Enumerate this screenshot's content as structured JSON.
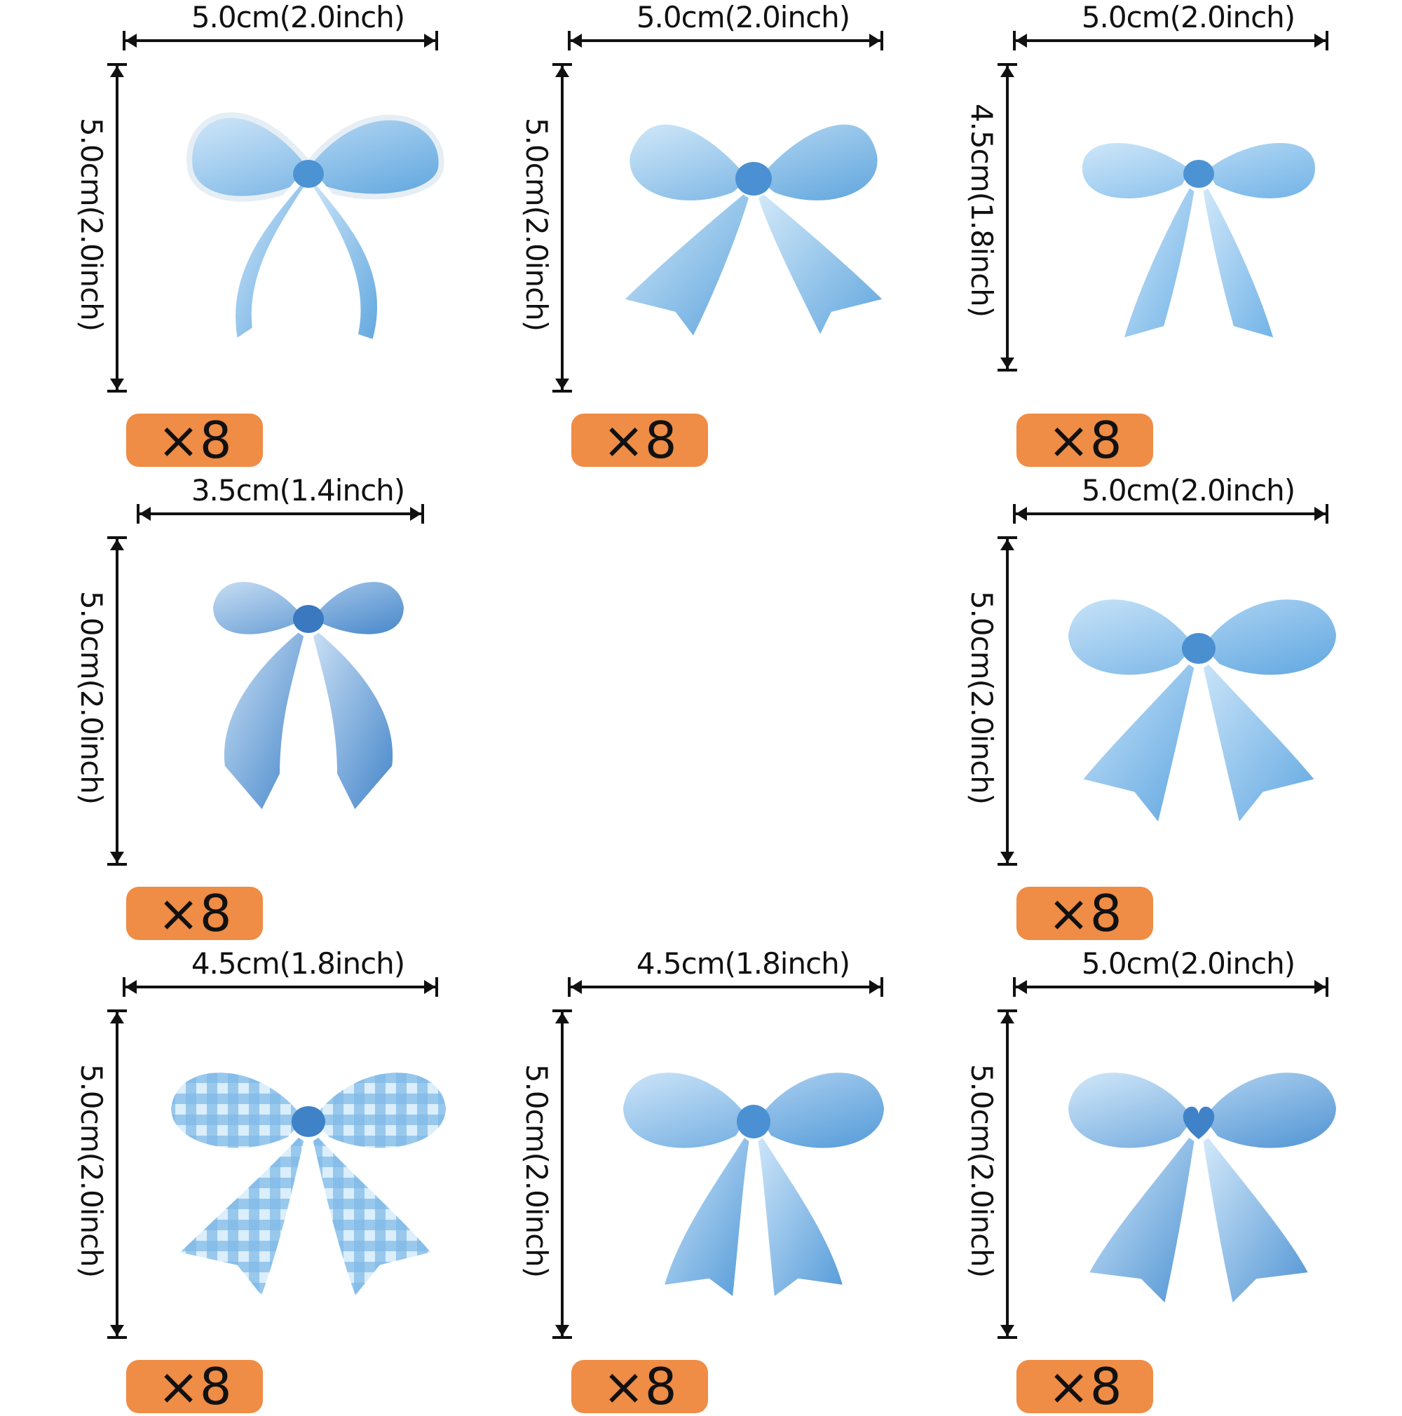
{
  "colors": {
    "badge": "#ef8c45",
    "bow_light": "#a9d4f2",
    "bow_mid": "#6fb0e4",
    "bow_dark": "#3d7fc6",
    "sticker_border": "#ffffff"
  },
  "stickers": [
    {
      "width_label": "5.0cm(2.0inch)",
      "height_label": "5.0cm(2.0inch)",
      "count": "×8",
      "style": "ribbon-loop-bow"
    },
    {
      "width_label": "5.0cm(2.0inch)",
      "height_label": "5.0cm(2.0inch)",
      "count": "×8",
      "style": "watercolor-bow"
    },
    {
      "width_label": "5.0cm(2.0inch)",
      "height_label": "4.5cm(1.8inch)",
      "count": "×8",
      "style": "simple-bow"
    },
    {
      "width_label": "3.5cm(1.4inch)",
      "height_label": "5.0cm(2.0inch)",
      "count": "×8",
      "style": "ruffled-bow"
    },
    {
      "width_label": "5.0cm(2.0inch)",
      "height_label": "5.0cm(2.0inch)",
      "count": "×8",
      "style": "striped-bow"
    },
    {
      "width_label": "4.5cm(1.8inch)",
      "height_label": "5.0cm(2.0inch)",
      "count": "×8",
      "style": "gingham-bow"
    },
    {
      "width_label": "4.5cm(1.8inch)",
      "height_label": "5.0cm(2.0inch)",
      "count": "×8",
      "style": "stitched-bow"
    },
    {
      "width_label": "5.0cm(2.0inch)",
      "height_label": "5.0cm(2.0inch)",
      "count": "×8",
      "style": "heart-bow"
    }
  ]
}
